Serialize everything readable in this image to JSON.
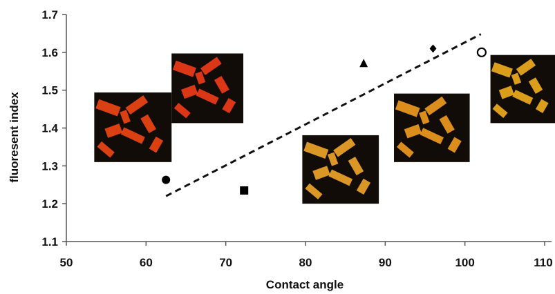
{
  "chart_data": {
    "type": "scatter",
    "title": "",
    "xlabel": "Contact angle",
    "ylabel": "fluoresent index",
    "xlim": [
      50,
      110
    ],
    "ylim": [
      1.1,
      1.7
    ],
    "x_ticks": [
      "50",
      "60",
      "70",
      "80",
      "90",
      "100",
      "110"
    ],
    "y_ticks": [
      "1.1",
      "1.2",
      "1.3",
      "1.4",
      "1.5",
      "1.6",
      "1.7"
    ],
    "grid": false,
    "points": [
      {
        "marker": "filled-circle",
        "x": 62.5,
        "y": 1.263
      },
      {
        "marker": "filled-square",
        "x": 72.3,
        "y": 1.235
      },
      {
        "marker": "filled-triangle",
        "x": 87.3,
        "y": 1.57
      },
      {
        "marker": "filled-diamond",
        "x": 96.0,
        "y": 1.61
      },
      {
        "marker": "open-circle",
        "x": 102.1,
        "y": 1.6
      }
    ],
    "trendline": {
      "style": "dashed",
      "x": [
        62.5,
        102.0
      ],
      "y": [
        1.22,
        1.648
      ]
    },
    "insets": [
      {
        "name": "inset-micrograph-1",
        "tint": "#ff4a14",
        "x_range": [
          53.5,
          63.2
        ],
        "y_range": [
          1.31,
          1.494
        ]
      },
      {
        "name": "inset-micrograph-2",
        "tint": "#ff3f1a",
        "x_range": [
          63.2,
          72.2
        ],
        "y_range": [
          1.413,
          1.597
        ]
      },
      {
        "name": "inset-micrograph-3",
        "tint": "#ffb02a",
        "x_range": [
          79.6,
          89.2
        ],
        "y_range": [
          1.2,
          1.381
        ]
      },
      {
        "name": "inset-micrograph-4",
        "tint": "#ffa61f",
        "x_range": [
          91.1,
          100.6
        ],
        "y_range": [
          1.31,
          1.491
        ]
      },
      {
        "name": "inset-micrograph-5",
        "tint": "#ffb81f",
        "x_range": [
          103.2,
          112.5
        ],
        "y_range": [
          1.413,
          1.593
        ]
      }
    ]
  }
}
